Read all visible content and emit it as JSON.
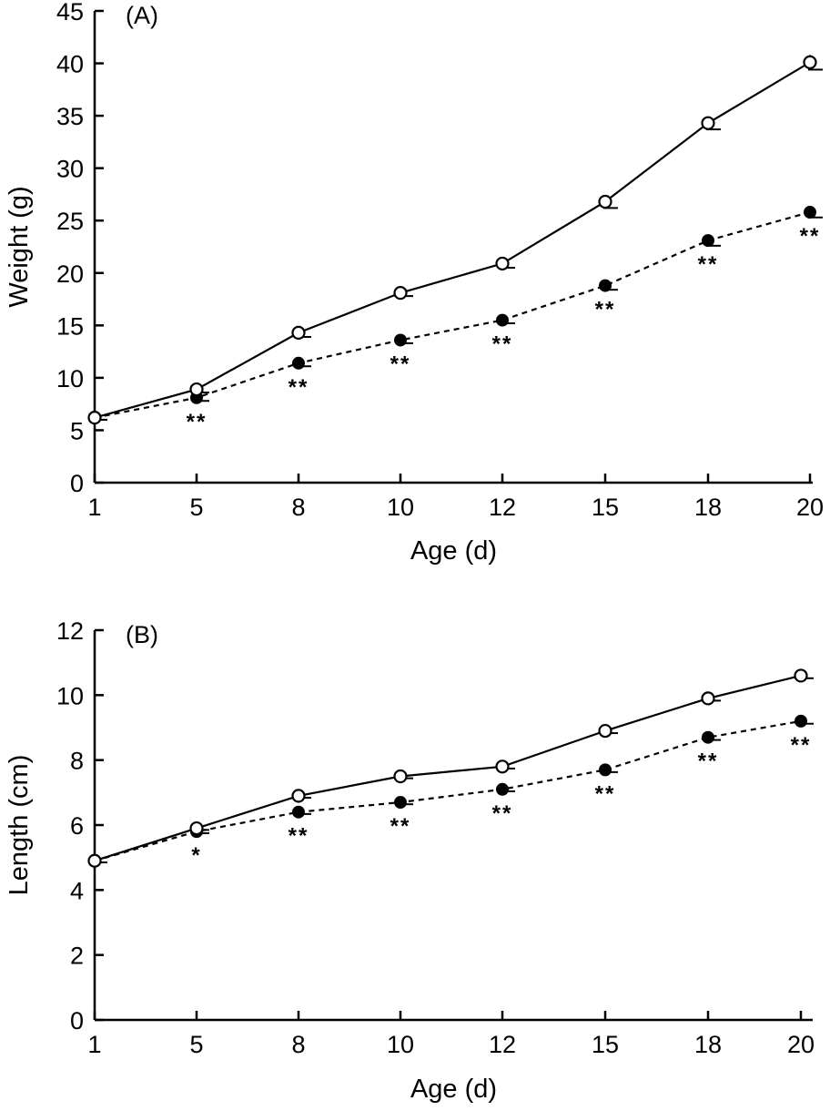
{
  "chart_data": [
    {
      "type": "line",
      "panel_label": "(A)",
      "xlabel": "Age (d)",
      "ylabel": "Weight (g)",
      "x_categories": [
        "1",
        "5",
        "8",
        "10",
        "12",
        "15",
        "18",
        "20"
      ],
      "ylim": [
        0,
        45
      ],
      "yticks": [
        0,
        5,
        10,
        15,
        20,
        25,
        30,
        35,
        40,
        45
      ],
      "grid": false,
      "series": [
        {
          "line_style": "solid",
          "marker": "open-circle",
          "values": [
            6.2,
            8.9,
            14.3,
            18.1,
            20.9,
            26.8,
            34.3,
            40.1
          ],
          "error": [
            0.2,
            0.3,
            0.4,
            0.3,
            0.4,
            0.6,
            0.6,
            0.7
          ]
        },
        {
          "line_style": "dashed",
          "marker": "filled-circle",
          "values": [
            6.2,
            8.1,
            11.4,
            13.6,
            15.5,
            18.8,
            23.1,
            25.8
          ],
          "error": [
            0.2,
            0.3,
            0.3,
            0.3,
            0.3,
            0.4,
            0.5,
            0.5
          ]
        }
      ],
      "annotations": [
        "",
        "**",
        "**",
        "**",
        "**",
        "**",
        "**",
        "**"
      ]
    },
    {
      "type": "line",
      "panel_label": "(B)",
      "xlabel": "Age (d)",
      "ylabel": "Length (cm)",
      "x_categories": [
        "1",
        "5",
        "8",
        "10",
        "12",
        "15",
        "18",
        "20"
      ],
      "ylim": [
        0,
        12
      ],
      "yticks": [
        0,
        2,
        4,
        6,
        8,
        10,
        12
      ],
      "grid": false,
      "series": [
        {
          "line_style": "solid",
          "marker": "open-circle",
          "values": [
            4.9,
            5.9,
            6.9,
            7.5,
            7.8,
            8.9,
            9.9,
            10.6
          ],
          "error": [
            0.05,
            0.05,
            0.06,
            0.06,
            0.06,
            0.07,
            0.07,
            0.08
          ]
        },
        {
          "line_style": "dashed",
          "marker": "filled-circle",
          "values": [
            4.9,
            5.8,
            6.4,
            6.7,
            7.1,
            7.7,
            8.7,
            9.2
          ],
          "error": [
            0.05,
            0.05,
            0.06,
            0.06,
            0.06,
            0.07,
            0.08,
            0.08
          ]
        }
      ],
      "annotations": [
        "",
        "*",
        "**",
        "**",
        "**",
        "**",
        "**",
        "**"
      ]
    }
  ]
}
